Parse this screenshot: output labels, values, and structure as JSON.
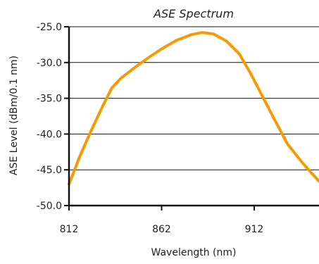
{
  "chart_data": {
    "type": "line",
    "title": "ASE Spectrum",
    "xlabel": "Wavelength (nm)",
    "ylabel": "ASE Level (dBm/0.1 nm)",
    "xlim": [
      812,
      947
    ],
    "ylim": [
      -50,
      -25
    ],
    "x_ticks": [
      812,
      862,
      912
    ],
    "x_tick_labels": [
      "812",
      "862",
      "912"
    ],
    "y_ticks": [
      -25,
      -30,
      -35,
      -40,
      -45,
      -50
    ],
    "y_tick_labels": [
      "-25.0",
      "-30.0",
      "-35.0",
      "-40.0",
      "-45.0",
      "-50.0"
    ],
    "grid": "horizontal",
    "line_color": "#f59a00",
    "series": [
      {
        "x": [
          812,
          818,
          824,
          830,
          835,
          840,
          848,
          855,
          862,
          870,
          878,
          884,
          890,
          897,
          904,
          910,
          916,
          922,
          930,
          938,
          947
        ],
        "y": [
          -47.0,
          -43.0,
          -39.5,
          -36.2,
          -33.6,
          -32.2,
          -30.6,
          -29.3,
          -28.1,
          -26.9,
          -26.1,
          -25.8,
          -26.0,
          -27.0,
          -28.8,
          -31.5,
          -34.5,
          -37.5,
          -41.4,
          -44.0,
          -46.6
        ]
      }
    ]
  }
}
